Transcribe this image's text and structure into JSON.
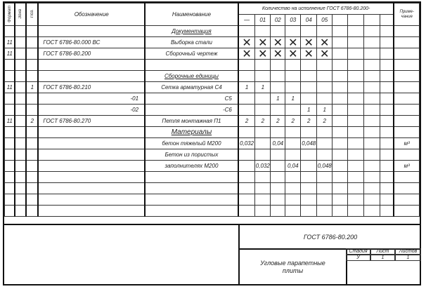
{
  "header": {
    "format": "Формат",
    "zone": "Зона",
    "position": "Поз.",
    "designation": "Обозначение",
    "name": "Наименование",
    "quantity_title": "Количество на исполнение ГОСТ 6786-80.200-",
    "variants": [
      "—",
      "01",
      "02",
      "03",
      "04",
      "05",
      "",
      "",
      "",
      ""
    ],
    "note": "Приме-чание"
  },
  "rows": [
    {
      "format": "",
      "pos": "",
      "designation": "",
      "name": "Документация",
      "style": "section",
      "q": [
        "",
        "",
        "",
        "",
        "",
        "",
        "",
        "",
        "",
        ""
      ],
      "note": ""
    },
    {
      "format": "11",
      "pos": "",
      "designation": "ГОСТ 6786-80.000 ВС",
      "name": "Выборка стали",
      "q": [
        "X",
        "X",
        "X",
        "X",
        "X",
        "X",
        "",
        "",
        "",
        ""
      ],
      "note": ""
    },
    {
      "format": "11",
      "pos": "",
      "designation": "ГОСТ 6786-80.200",
      "name": "Сборочный чертеж",
      "q": [
        "X",
        "X",
        "X",
        "X",
        "X",
        "X",
        "",
        "",
        "",
        ""
      ],
      "note": ""
    },
    {
      "format": "",
      "pos": "",
      "designation": "",
      "name": "",
      "q": [
        "",
        "",
        "",
        "",
        "",
        "",
        "",
        "",
        "",
        ""
      ],
      "note": ""
    },
    {
      "format": "",
      "pos": "",
      "designation": "",
      "name": "Сборочные единицы",
      "style": "section",
      "q": [
        "",
        "",
        "",
        "",
        "",
        "",
        "",
        "",
        "",
        ""
      ],
      "note": ""
    },
    {
      "format": "11",
      "pos": "1",
      "designation": "ГОСТ 6786-80.210",
      "name": "Сетка арматурная С4",
      "q": [
        "1",
        "1",
        "",
        "",
        "",
        "",
        "",
        "",
        "",
        ""
      ],
      "note": ""
    },
    {
      "format": "",
      "pos": "",
      "designation": "-01",
      "name": "С5",
      "style": "r",
      "q": [
        "",
        "",
        "1",
        "1",
        "",
        "",
        "",
        "",
        "",
        ""
      ],
      "note": ""
    },
    {
      "format": "",
      "pos": "",
      "designation": "-02",
      "name": "-С6",
      "style": "r",
      "q": [
        "",
        "",
        "",
        "",
        "1",
        "1",
        "",
        "",
        "",
        ""
      ],
      "note": ""
    },
    {
      "format": "11",
      "pos": "2",
      "designation": "ГОСТ 6786-80.270",
      "name": "Петля монтажная П1",
      "q": [
        "2",
        "2",
        "2",
        "2",
        "2",
        "2",
        "",
        "",
        "",
        ""
      ],
      "note": ""
    },
    {
      "format": "",
      "pos": "",
      "designation": "",
      "name": "Материалы",
      "style": "big",
      "q": [
        "",
        "",
        "",
        "",
        "",
        "",
        "",
        "",
        "",
        ""
      ],
      "note": ""
    },
    {
      "format": "",
      "pos": "",
      "designation": "",
      "name": "бетон тяжелый М200",
      "q": [
        "0,032",
        "",
        "0,04",
        "",
        "0,048",
        "",
        "",
        "",
        "",
        ""
      ],
      "note": "м³"
    },
    {
      "format": "",
      "pos": "",
      "designation": "",
      "name": "Бетон из пористых",
      "q": [
        "",
        "",
        "",
        "",
        "",
        "",
        "",
        "",
        "",
        ""
      ],
      "note": ""
    },
    {
      "format": "",
      "pos": "",
      "designation": "",
      "name": "заполнителях   М200",
      "q": [
        "",
        "0,032",
        "",
        "0,04",
        "",
        "0,048",
        "",
        "",
        "",
        ""
      ],
      "note": "м³"
    },
    {
      "format": "",
      "pos": "",
      "designation": "",
      "name": "",
      "q": [
        "",
        "",
        "",
        "",
        "",
        "",
        "",
        "",
        "",
        ""
      ],
      "note": ""
    },
    {
      "format": "",
      "pos": "",
      "designation": "",
      "name": "",
      "q": [
        "",
        "",
        "",
        "",
        "",
        "",
        "",
        "",
        "",
        ""
      ],
      "note": ""
    },
    {
      "format": "",
      "pos": "",
      "designation": "",
      "name": "",
      "q": [
        "",
        "",
        "",
        "",
        "",
        "",
        "",
        "",
        "",
        ""
      ],
      "note": ""
    },
    {
      "format": "",
      "pos": "",
      "designation": "",
      "name": "",
      "q": [
        "",
        "",
        "",
        "",
        "",
        "",
        "",
        "",
        "",
        ""
      ],
      "note": ""
    }
  ],
  "title_block": {
    "designation": "ГОСТ 6786-80.200",
    "name_line1": "Угловые парапетные",
    "name_line2": "плиты",
    "stage_label": "Стадия",
    "sheet_label": "Лист",
    "sheets_label": "Листов",
    "stage": "У",
    "sheet": "1",
    "sheets": "1"
  }
}
